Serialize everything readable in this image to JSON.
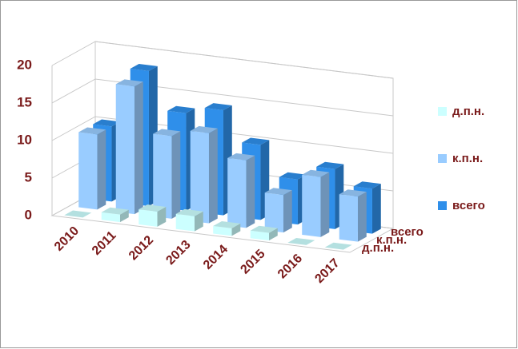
{
  "chart_data": {
    "type": "bar3d",
    "categories": [
      "2010",
      "2011",
      "2012",
      "2013",
      "2014",
      "2015",
      "2016",
      "2017"
    ],
    "series": [
      {
        "name": "д.п.н.",
        "color": "#ccffff",
        "values": [
          0,
          1,
          2,
          2,
          1,
          1,
          0,
          0
        ]
      },
      {
        "name": "к.п.н.",
        "color": "#99ccff",
        "values": [
          10,
          17,
          11,
          12,
          9,
          5,
          8,
          6
        ]
      },
      {
        "name": "всего",
        "color": "#2f8fea",
        "values": [
          10,
          18,
          13,
          14,
          10,
          6,
          8,
          6
        ]
      }
    ],
    "ylim": [
      0,
      20
    ],
    "yticks": [
      0,
      5,
      10,
      15,
      20
    ],
    "grid": true,
    "legend": "right"
  }
}
